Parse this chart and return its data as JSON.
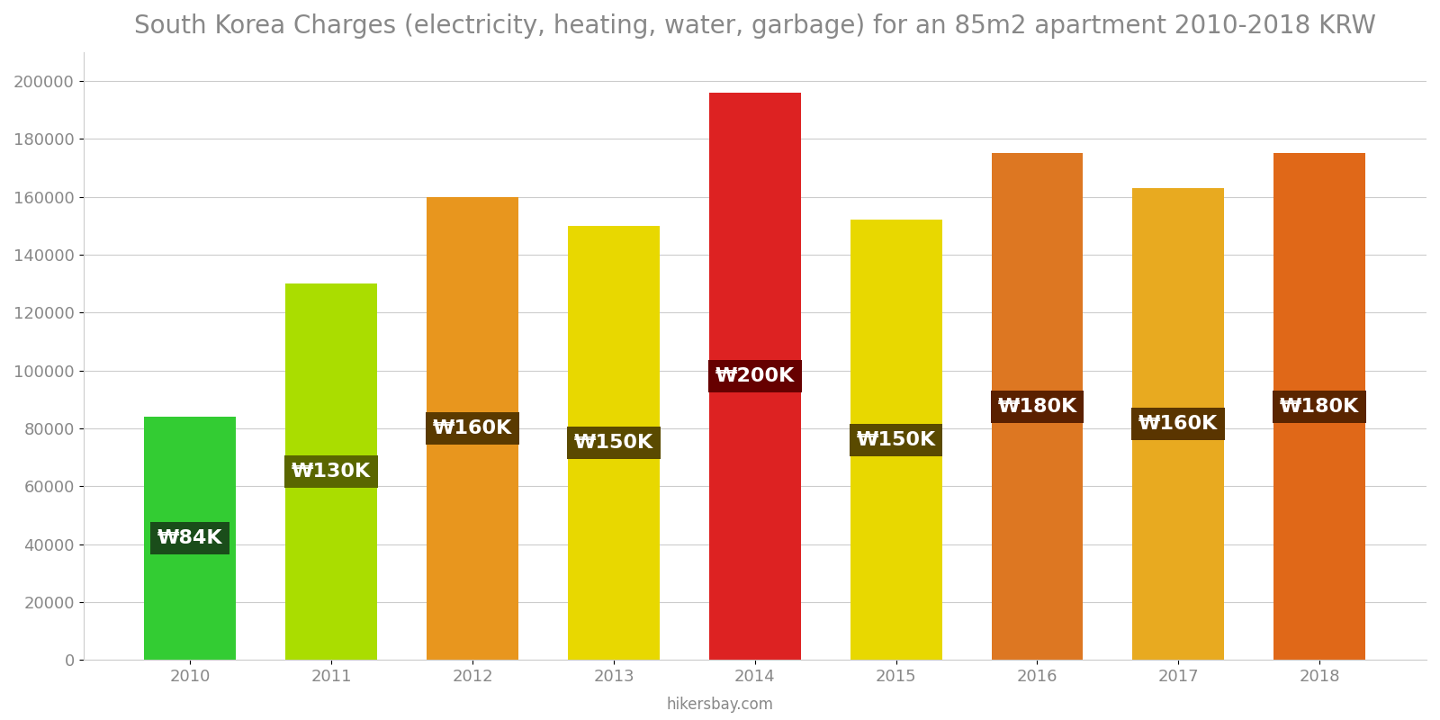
{
  "title": "South Korea Charges (electricity, heating, water, garbage) for an 85m2 apartment 2010-2018 KRW",
  "years": [
    2010,
    2011,
    2012,
    2013,
    2014,
    2015,
    2016,
    2017,
    2018
  ],
  "values": [
    84000,
    130000,
    160000,
    150000,
    196000,
    152000,
    175000,
    163000,
    175000
  ],
  "labels": [
    "₩84K",
    "₩130K",
    "₩160K",
    "₩150K",
    "₩200K",
    "₩150K",
    "₩180K",
    "₩160K",
    "₩180K"
  ],
  "bar_colors": [
    "#33cc33",
    "#aadd00",
    "#e8961e",
    "#e8d800",
    "#dd2222",
    "#e8d800",
    "#dd7722",
    "#e8aa20",
    "#e06818"
  ],
  "label_bg_colors": [
    "#1a4d1a",
    "#5a6600",
    "#5a3a00",
    "#5a4a00",
    "#660000",
    "#5a4a00",
    "#5a2000",
    "#5a3500",
    "#5a2500"
  ],
  "ylabel": "",
  "ylim": [
    0,
    210000
  ],
  "yticks": [
    0,
    20000,
    40000,
    60000,
    80000,
    100000,
    120000,
    140000,
    160000,
    180000,
    200000
  ],
  "footer": "hikersbay.com",
  "background_color": "#ffffff",
  "grid_color": "#cccccc",
  "title_color": "#888888",
  "tick_color": "#888888",
  "label_font_color": "#ffffff",
  "label_fontsize": 16,
  "title_fontsize": 20,
  "bar_width": 0.65
}
